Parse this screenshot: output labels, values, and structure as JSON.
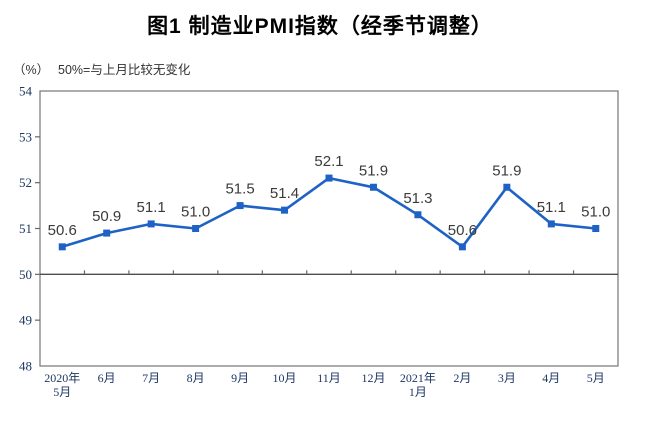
{
  "page": {
    "title": "图1 制造业PMI指数（经季节调整）",
    "unit_label": "（%）",
    "note_label": "50%=与上月比较无变化"
  },
  "colors": {
    "line": "#1E62C6",
    "marker": "#1E62C6",
    "frame": "#808080",
    "reference_line": "#4D4D4D",
    "tick": "#666666",
    "axis_label": "#1F3864",
    "data_label": "#3B3B3B",
    "title": "#000000"
  },
  "chart_data": {
    "type": "line",
    "title": "图1 制造业PMI指数（经季节调整）",
    "subtitle": "50%=与上月比较无变化",
    "unit": "（%）",
    "categories": [
      "2020年\n5月",
      "6月",
      "7月",
      "8月",
      "9月",
      "10月",
      "11月",
      "12月",
      "2021年\n1月",
      "2月",
      "3月",
      "4月",
      "5月"
    ],
    "values": [
      50.6,
      50.9,
      51.1,
      51.0,
      51.5,
      51.4,
      52.1,
      51.9,
      51.3,
      50.6,
      51.9,
      51.1,
      51.0
    ],
    "data_labels": [
      "50.6",
      "50.9",
      "51.1",
      "51.0",
      "51.5",
      "51.4",
      "52.1",
      "51.9",
      "51.3",
      "50.6",
      "51.9",
      "51.1",
      "51.0"
    ],
    "ylabel": "（%）",
    "xlabel": "",
    "ylim": [
      48,
      54
    ],
    "ytick_step": 1,
    "yticks": [
      "48",
      "49",
      "50",
      "51",
      "52",
      "53",
      "54"
    ],
    "reference_line": 50,
    "grid": false,
    "legend": "none",
    "marker": "square"
  }
}
